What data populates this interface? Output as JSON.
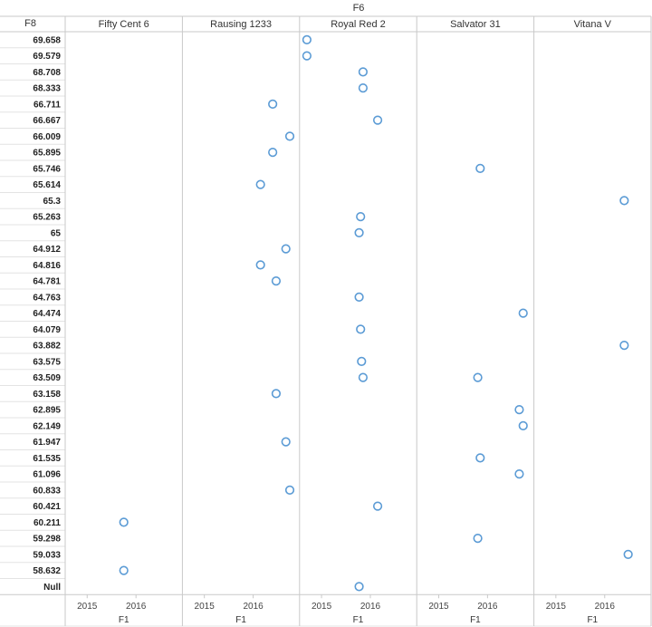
{
  "chart_data": {
    "type": "scatter",
    "column_field": "F6",
    "row_field": "F8",
    "x_field": "F1",
    "columns": [
      "Fifty Cent 6",
      "Rausing 1233",
      "Royal Red 2",
      "Salvator 31",
      "Vitana V"
    ],
    "rows": [
      "69.658",
      "69.579",
      "68.708",
      "68.333",
      "66.711",
      "66.667",
      "66.009",
      "65.895",
      "65.746",
      "65.614",
      "65.3",
      "65.263",
      "65",
      "64.912",
      "64.816",
      "64.781",
      "64.763",
      "64.474",
      "64.079",
      "63.882",
      "63.575",
      "63.509",
      "63.158",
      "62.895",
      "62.149",
      "61.947",
      "61.535",
      "61.096",
      "60.833",
      "60.421",
      "60.211",
      "59.298",
      "59.033",
      "58.632",
      "Null"
    ],
    "x_ticks": [
      2015,
      2016
    ],
    "x_domain": [
      2014.55,
      2016.95
    ],
    "points": [
      {
        "row": "69.658",
        "col": "Royal Red 2",
        "x": 2014.7
      },
      {
        "row": "69.579",
        "col": "Royal Red 2",
        "x": 2014.7
      },
      {
        "row": "68.708",
        "col": "Royal Red 2",
        "x": 2015.85
      },
      {
        "row": "68.333",
        "col": "Royal Red 2",
        "x": 2015.85
      },
      {
        "row": "66.711",
        "col": "Rausing 1233",
        "x": 2016.4
      },
      {
        "row": "66.667",
        "col": "Royal Red 2",
        "x": 2016.15
      },
      {
        "row": "66.009",
        "col": "Rausing 1233",
        "x": 2016.75
      },
      {
        "row": "65.895",
        "col": "Rausing 1233",
        "x": 2016.4
      },
      {
        "row": "65.746",
        "col": "Salvator 31",
        "x": 2015.85
      },
      {
        "row": "65.614",
        "col": "Rausing 1233",
        "x": 2016.15
      },
      {
        "row": "65.3",
        "col": "Vitana V",
        "x": 2016.4
      },
      {
        "row": "65.263",
        "col": "Royal Red 2",
        "x": 2015.8
      },
      {
        "row": "65",
        "col": "Royal Red 2",
        "x": 2015.77
      },
      {
        "row": "64.912",
        "col": "Rausing 1233",
        "x": 2016.67
      },
      {
        "row": "64.816",
        "col": "Rausing 1233",
        "x": 2016.15
      },
      {
        "row": "64.781",
        "col": "Rausing 1233",
        "x": 2016.47
      },
      {
        "row": "64.763",
        "col": "Royal Red 2",
        "x": 2015.77
      },
      {
        "row": "64.474",
        "col": "Salvator 31",
        "x": 2016.73
      },
      {
        "row": "64.079",
        "col": "Royal Red 2",
        "x": 2015.8
      },
      {
        "row": "63.882",
        "col": "Vitana V",
        "x": 2016.4
      },
      {
        "row": "63.575",
        "col": "Royal Red 2",
        "x": 2015.82
      },
      {
        "row": "63.509",
        "col": "Royal Red 2",
        "x": 2015.85
      },
      {
        "row": "63.509",
        "col": "Salvator 31",
        "x": 2015.8
      },
      {
        "row": "63.158",
        "col": "Rausing 1233",
        "x": 2016.47
      },
      {
        "row": "62.895",
        "col": "Salvator 31",
        "x": 2016.65
      },
      {
        "row": "62.149",
        "col": "Salvator 31",
        "x": 2016.73
      },
      {
        "row": "61.947",
        "col": "Rausing 1233",
        "x": 2016.67
      },
      {
        "row": "61.535",
        "col": "Salvator 31",
        "x": 2015.85
      },
      {
        "row": "61.096",
        "col": "Salvator 31",
        "x": 2016.65
      },
      {
        "row": "60.833",
        "col": "Rausing 1233",
        "x": 2016.75
      },
      {
        "row": "60.421",
        "col": "Royal Red 2",
        "x": 2016.15
      },
      {
        "row": "60.211",
        "col": "Fifty Cent 6",
        "x": 2015.75
      },
      {
        "row": "59.298",
        "col": "Salvator 31",
        "x": 2015.8
      },
      {
        "row": "59.033",
        "col": "Vitana V",
        "x": 2016.48
      },
      {
        "row": "58.632",
        "col": "Fifty Cent 6",
        "x": 2015.75
      },
      {
        "row": "Null",
        "col": "Royal Red 2",
        "x": 2015.77
      }
    ],
    "grid": true,
    "legend": "none",
    "mark_color": "#5b9bd5"
  }
}
